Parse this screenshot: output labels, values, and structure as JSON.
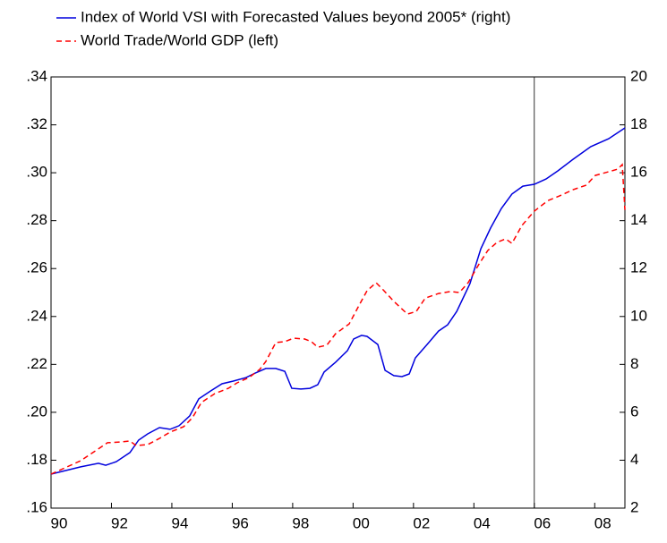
{
  "chart_data": {
    "type": "line",
    "xlim": [
      1990,
      2009
    ],
    "xticks": [
      {
        "value": 1990,
        "label": "90"
      },
      {
        "value": 1992,
        "label": "92"
      },
      {
        "value": 1994,
        "label": "94"
      },
      {
        "value": 1996,
        "label": "96"
      },
      {
        "value": 1998,
        "label": "98"
      },
      {
        "value": 2000,
        "label": "00"
      },
      {
        "value": 2002,
        "label": "02"
      },
      {
        "value": 2004,
        "label": "04"
      },
      {
        "value": 2006,
        "label": "06"
      },
      {
        "value": 2008,
        "label": "08"
      }
    ],
    "ylim": [
      0.16,
      0.34
    ],
    "yticks": [
      {
        "value": 0.16,
        "label": ".16"
      },
      {
        "value": 0.18,
        "label": ".18"
      },
      {
        "value": 0.2,
        "label": ".20"
      },
      {
        "value": 0.22,
        "label": ".22"
      },
      {
        "value": 0.24,
        "label": ".24"
      },
      {
        "value": 0.26,
        "label": ".26"
      },
      {
        "value": 0.28,
        "label": ".28"
      },
      {
        "value": 0.3,
        "label": ".30"
      },
      {
        "value": 0.32,
        "label": ".32"
      },
      {
        "value": 0.34,
        "label": ".34"
      }
    ],
    "y2lim": [
      2,
      20
    ],
    "y2ticks": [
      2,
      4,
      6,
      8,
      10,
      12,
      14,
      16,
      18,
      20
    ],
    "vline": 2006,
    "series": [
      {
        "name": "Index of World VSI with Forecasted Values beyond 2005* (right)",
        "color": "#0000dd",
        "line_style": "solid",
        "axis": "y2",
        "x": [
          1990.0,
          1990.98,
          1991.57,
          1991.81,
          1992.16,
          1992.61,
          1992.9,
          1993.2,
          1993.59,
          1993.94,
          1994.24,
          1994.59,
          1994.89,
          1995.28,
          1995.66,
          1996.02,
          1996.46,
          1996.76,
          1997.11,
          1997.44,
          1997.74,
          1997.97,
          1998.27,
          1998.57,
          1998.83,
          1999.04,
          1999.42,
          1999.81,
          2000.02,
          2000.28,
          2000.46,
          2000.82,
          2001.06,
          2001.35,
          2001.62,
          2001.86,
          2002.06,
          2002.48,
          2002.83,
          2003.13,
          2003.43,
          2003.87,
          2004.23,
          2004.55,
          2004.91,
          2005.26,
          2005.62,
          2006.0,
          2006.39,
          2006.78,
          2007.28,
          2007.87,
          2008.46,
          2009.0
        ],
        "values": [
          3.42,
          3.72,
          3.87,
          3.79,
          3.94,
          4.32,
          4.84,
          5.1,
          5.36,
          5.29,
          5.44,
          5.85,
          6.56,
          6.89,
          7.19,
          7.3,
          7.45,
          7.64,
          7.83,
          7.83,
          7.71,
          7.0,
          6.97,
          7.0,
          7.15,
          7.68,
          8.09,
          8.57,
          9.06,
          9.21,
          9.17,
          8.83,
          7.75,
          7.53,
          7.49,
          7.6,
          8.27,
          8.87,
          9.39,
          9.65,
          10.21,
          11.37,
          12.83,
          13.69,
          14.51,
          15.11,
          15.44,
          15.52,
          15.74,
          16.08,
          16.56,
          17.09,
          17.42,
          17.87
        ]
      },
      {
        "name": "World Trade/World GDP (left)",
        "color": "#ff0000",
        "line_style": "dashed",
        "x": [
          1990.0,
          1990.53,
          1990.98,
          1991.42,
          1991.87,
          1992.31,
          1992.61,
          1992.82,
          1993.2,
          1993.59,
          1993.94,
          1994.39,
          1994.68,
          1994.98,
          1995.42,
          1995.87,
          1996.16,
          1996.55,
          1996.91,
          1997.11,
          1997.44,
          1997.74,
          1998.03,
          1998.39,
          1998.62,
          1998.83,
          1999.13,
          1999.42,
          1999.87,
          2000.17,
          2000.46,
          2000.76,
          2001.0,
          2001.35,
          2001.8,
          2002.09,
          2002.39,
          2002.83,
          2003.22,
          2003.52,
          2003.81,
          2004.17,
          2004.46,
          2004.76,
          2005.05,
          2005.26,
          2005.59,
          2006.0,
          2006.45,
          2006.83,
          2007.28,
          2007.72,
          2008.02,
          2008.46,
          2008.76,
          2008.91,
          2009.0
        ],
        "values": [
          0.1742,
          0.1772,
          0.1798,
          0.1835,
          0.1873,
          0.1876,
          0.188,
          0.1861,
          0.1865,
          0.1891,
          0.1917,
          0.194,
          0.1977,
          0.2041,
          0.2078,
          0.21,
          0.2123,
          0.2145,
          0.2179,
          0.2212,
          0.2291,
          0.2295,
          0.2309,
          0.2306,
          0.2295,
          0.2272,
          0.228,
          0.2328,
          0.2369,
          0.244,
          0.2507,
          0.2541,
          0.2511,
          0.2463,
          0.241,
          0.2421,
          0.2477,
          0.2496,
          0.2504,
          0.25,
          0.2541,
          0.2619,
          0.2675,
          0.2709,
          0.2724,
          0.2705,
          0.278,
          0.284,
          0.2884,
          0.2903,
          0.2929,
          0.2948,
          0.2989,
          0.3004,
          0.3015,
          0.3034,
          0.2845
        ]
      }
    ]
  }
}
